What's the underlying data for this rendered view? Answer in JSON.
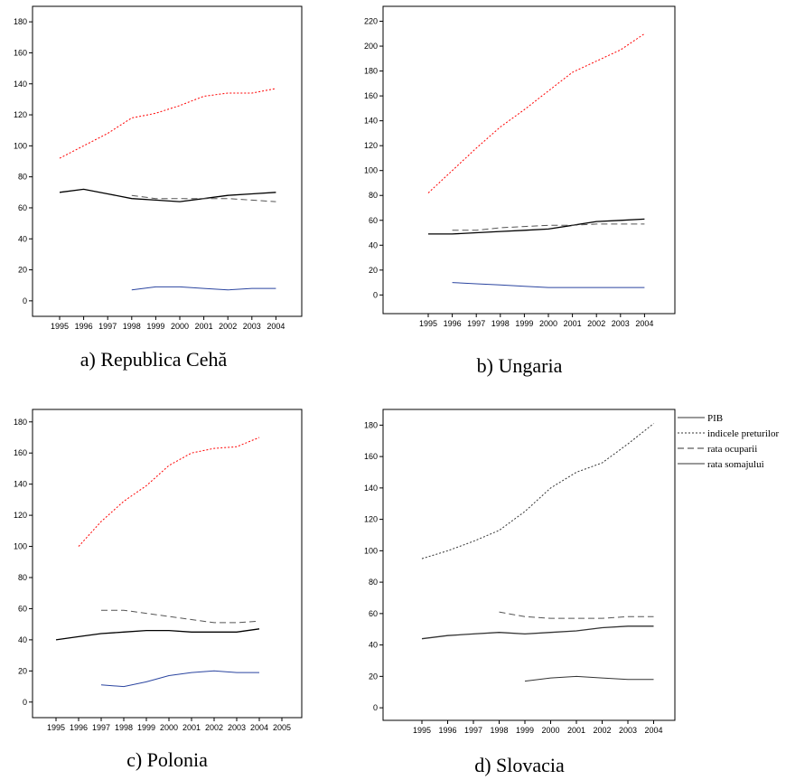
{
  "chart_data": [
    {
      "type": "line",
      "caption": "a) Republica Cehă",
      "categories": [
        "1995",
        "1996",
        "1997",
        "1998",
        "1999",
        "2000",
        "2001",
        "2002",
        "2003",
        "2004"
      ],
      "yticks": [
        0,
        20,
        40,
        60,
        80,
        100,
        120,
        140,
        160,
        180
      ],
      "ylim": [
        -10,
        190
      ],
      "series": [
        {
          "key": "pib",
          "values": [
            70,
            72,
            69,
            66,
            65,
            64,
            66,
            68,
            69,
            70
          ]
        },
        {
          "key": "preturi",
          "values": [
            92,
            100,
            108,
            118,
            121,
            126,
            132,
            134,
            134,
            137
          ]
        },
        {
          "key": "ocupare",
          "values": [
            null,
            null,
            null,
            68,
            66,
            66,
            66,
            66,
            65,
            64
          ]
        },
        {
          "key": "somaj",
          "values": [
            null,
            null,
            null,
            7,
            9,
            9,
            8,
            7,
            8,
            8
          ]
        }
      ]
    },
    {
      "type": "line",
      "caption": "b) Ungaria",
      "categories": [
        "1995",
        "1996",
        "1997",
        "1998",
        "1999",
        "2000",
        "2001",
        "2002",
        "2003",
        "2004"
      ],
      "yticks": [
        0,
        20,
        40,
        60,
        80,
        100,
        120,
        140,
        160,
        180,
        200,
        220
      ],
      "ylim": [
        -15,
        232
      ],
      "series": [
        {
          "key": "pib",
          "values": [
            49,
            49,
            50,
            51,
            52,
            53,
            56,
            59,
            60,
            61
          ]
        },
        {
          "key": "preturi",
          "values": [
            82,
            100,
            118,
            135,
            149,
            164,
            179,
            188,
            197,
            210
          ]
        },
        {
          "key": "ocupare",
          "values": [
            null,
            52,
            52,
            54,
            55,
            56,
            56,
            57,
            57,
            57
          ]
        },
        {
          "key": "somaj",
          "values": [
            null,
            10,
            9,
            8,
            7,
            6,
            6,
            6,
            6,
            6
          ]
        }
      ]
    },
    {
      "type": "line",
      "caption": "c) Polonia",
      "categories": [
        "1995",
        "1996",
        "1997",
        "1998",
        "1999",
        "2000",
        "2001",
        "2002",
        "2003",
        "2004",
        "2005"
      ],
      "yticks": [
        0,
        20,
        40,
        60,
        80,
        100,
        120,
        140,
        160,
        180
      ],
      "ylim": [
        -10,
        188
      ],
      "series": [
        {
          "key": "pib",
          "values": [
            40,
            42,
            44,
            45,
            46,
            46,
            45,
            45,
            45,
            47,
            null
          ]
        },
        {
          "key": "preturi",
          "values": [
            null,
            100,
            116,
            129,
            139,
            152,
            160,
            163,
            164,
            170,
            null
          ]
        },
        {
          "key": "ocupare",
          "values": [
            null,
            null,
            59,
            59,
            57,
            55,
            53,
            51,
            51,
            52,
            null
          ]
        },
        {
          "key": "somaj",
          "values": [
            null,
            null,
            11,
            10,
            13,
            17,
            19,
            20,
            19,
            19,
            null
          ]
        }
      ]
    },
    {
      "type": "line",
      "caption": "d) Slovacia",
      "categories": [
        "1995",
        "1996",
        "1997",
        "1998",
        "1999",
        "2000",
        "2001",
        "2002",
        "2003",
        "2004"
      ],
      "yticks": [
        0,
        20,
        40,
        60,
        80,
        100,
        120,
        140,
        160,
        180
      ],
      "ylim": [
        -8,
        190
      ],
      "legend": [
        "PIB",
        "indicele preturilor",
        "rata ocuparii",
        "rata somajului"
      ],
      "series": [
        {
          "key": "pib",
          "values": [
            44,
            46,
            47,
            48,
            47,
            48,
            49,
            51,
            52,
            52
          ]
        },
        {
          "key": "preturi",
          "values": [
            95,
            100,
            106,
            113,
            125,
            140,
            150,
            156,
            168,
            181
          ]
        },
        {
          "key": "ocupare",
          "values": [
            null,
            null,
            null,
            61,
            58,
            57,
            57,
            57,
            58,
            58
          ]
        },
        {
          "key": "somaj",
          "values": [
            null,
            null,
            null,
            null,
            17,
            19,
            20,
            19,
            18,
            18
          ]
        }
      ]
    }
  ]
}
